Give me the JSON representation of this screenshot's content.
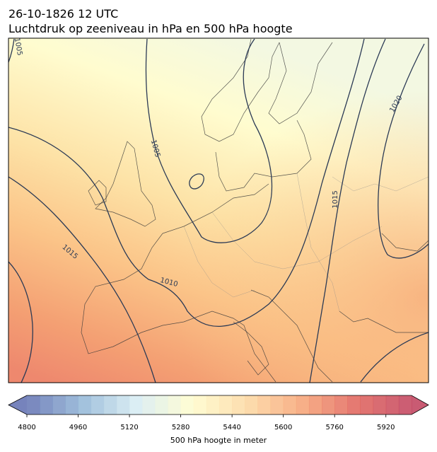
{
  "header": {
    "date": "26-10-1826 12 UTC",
    "title": "Luchtdruk op zeeniveau in hPa en 500 hPa hoogte"
  },
  "map": {
    "isobar_labels": [
      1005,
      1005,
      1010,
      1015,
      1015,
      1020
    ]
  },
  "colorbar": {
    "vlim": [
      4800,
      6000
    ],
    "step": 40,
    "ticks": [
      4800,
      4960,
      5120,
      5280,
      5440,
      5600,
      5760,
      5920
    ],
    "label": "500 hPa hoogte in meter"
  }
}
